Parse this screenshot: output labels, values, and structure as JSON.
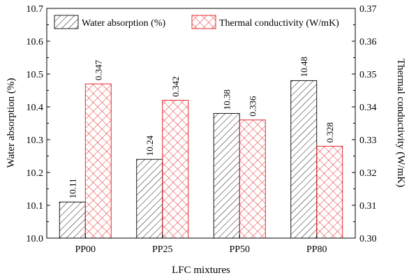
{
  "chart_data": {
    "type": "bar",
    "title": "",
    "xlabel": "LFC mixtures",
    "categories": [
      "PP00",
      "PP25",
      "PP50",
      "PP80"
    ],
    "left_axis": {
      "label": "Water absorption (%)",
      "ylim": [
        10.0,
        10.7
      ],
      "ticks": [
        "10.0",
        "10.1",
        "10.2",
        "10.3",
        "10.4",
        "10.5",
        "10.6",
        "10.7"
      ]
    },
    "right_axis": {
      "label": "Thermal conductivity (W/mK)",
      "ylim": [
        0.3,
        0.37
      ],
      "ticks": [
        "0.30",
        "0.31",
        "0.32",
        "0.33",
        "0.34",
        "0.35",
        "0.36",
        "0.37"
      ]
    },
    "series": [
      {
        "name": "Water absorption (%)",
        "axis": "left",
        "values": [
          10.11,
          10.24,
          10.38,
          10.48
        ],
        "labels": [
          "10.11",
          "10.24",
          "10.38",
          "10.48"
        ],
        "color": "#000000",
        "pattern": "diagonal-hatch"
      },
      {
        "name": "Thermal conductivity (W/mK)",
        "axis": "right",
        "values": [
          0.347,
          0.342,
          0.336,
          0.328
        ],
        "labels": [
          "0.347",
          "0.342",
          "0.336",
          "0.328"
        ],
        "color": "#e0141b",
        "pattern": "cross-hatch"
      }
    ],
    "legend": "top",
    "grid": false
  }
}
